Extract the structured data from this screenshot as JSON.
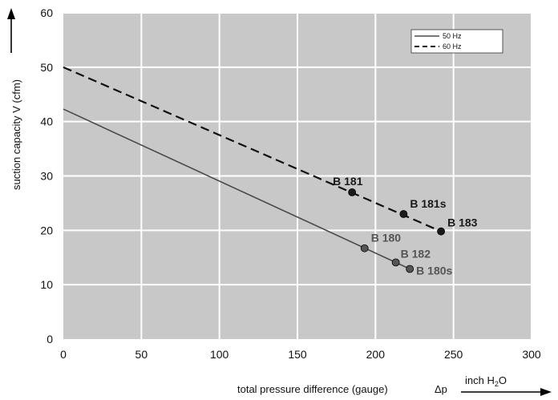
{
  "chart_data": {
    "type": "line",
    "xlabel": "total pressure difference (gauge)",
    "xlabel_symbol": "Δp",
    "xunit": "inch H₂O",
    "ylabel": "suction capacity V (cfm)",
    "xlim": [
      0,
      300
    ],
    "ylim": [
      0,
      60
    ],
    "xticks": [
      0,
      50,
      100,
      150,
      200,
      250,
      300
    ],
    "yticks": [
      0,
      10,
      20,
      30,
      40,
      50,
      60
    ],
    "grid": true,
    "legend_position": "top-right",
    "series": [
      {
        "name": "50 Hz",
        "style": "solid",
        "color": "#4a4a4a",
        "x": [
          0,
          222
        ],
        "y": [
          42.3,
          12.9
        ],
        "points": [
          {
            "label": "B 180",
            "x": 193,
            "y": 16.7
          },
          {
            "label": "B 182",
            "x": 213,
            "y": 14.1
          },
          {
            "label": "B 180s",
            "x": 222,
            "y": 12.9
          }
        ]
      },
      {
        "name": "60 Hz",
        "style": "dashed",
        "color": "#111111",
        "x": [
          0,
          242
        ],
        "y": [
          50,
          19.8
        ],
        "points": [
          {
            "label": "B 181",
            "x": 185,
            "y": 27
          },
          {
            "label": "B 181s",
            "x": 218,
            "y": 23
          },
          {
            "label": "B 183",
            "x": 242,
            "y": 19.8
          }
        ]
      }
    ]
  }
}
